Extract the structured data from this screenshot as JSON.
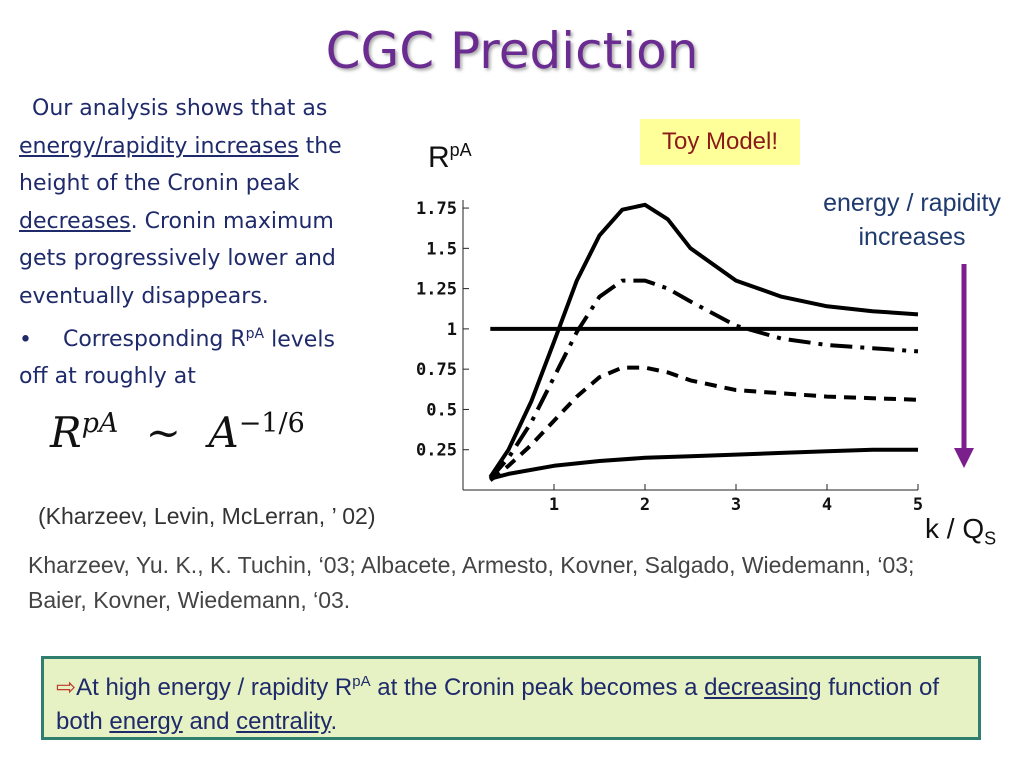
{
  "title": "CGC Prediction",
  "paragraph": {
    "part1": "Our analysis shows that as",
    "u1": "energy/rapidity increases",
    "part2": "the height of the Cronin peak",
    "u2": "decreases",
    "part3": ". Cronin maximum gets progressively lower and eventually disappears.",
    "bullet": "•",
    "bullet_pre": "Corresponding R",
    "bullet_sup": "pA",
    "bullet_post": "levels off at roughly at"
  },
  "formula": {
    "base": "R",
    "base_sup": "pA",
    "sim": "∼",
    "rhs": "A",
    "rhs_sup": "−1/6"
  },
  "cite1": "(Kharzeev, Levin, McLerran, ’ 02)",
  "cite2": "Kharzeev, Yu. K., K. Tuchin, ‘03; Albacete, Armesto, Kovner, Salgado, Wiedemann, ‘03; Baier, Kovner, Wiedemann, ‘03.",
  "toy_model": "Toy Model!",
  "annotation": {
    "line1": "energy / rapidity",
    "line2": "increases",
    "arrow_color": "#7b1f8c"
  },
  "conclusion": {
    "arrow": "⇨",
    "t1": "At high energy / rapidity R",
    "sup": "pA",
    "t2": "at the Cronin peak becomes a",
    "u1": "decreasing",
    "t3": "function of both",
    "u2": "energy",
    "t4": "and",
    "u3": "centrality",
    "t5": "."
  },
  "chart_data": {
    "type": "line",
    "title": "",
    "xlabel": "k / Q",
    "xlabel_sub": "S",
    "ylabel": "R",
    "ylabel_sup": "pA",
    "xlim": [
      0,
      5
    ],
    "ylim": [
      0,
      1.8
    ],
    "x_ticks": [
      "1",
      "2",
      "3",
      "4",
      "5"
    ],
    "y_ticks": [
      "0.25",
      "0.5",
      "0.75",
      "1",
      "1.25",
      "1.5",
      "1.75"
    ],
    "grid": false,
    "series": [
      {
        "style": "solid",
        "x": [
          0.3,
          0.5,
          0.75,
          1.0,
          1.25,
          1.5,
          1.75,
          2.0,
          2.25,
          2.5,
          3.0,
          3.5,
          4.0,
          4.5,
          5.0
        ],
        "y": [
          0.08,
          0.25,
          0.55,
          0.92,
          1.3,
          1.58,
          1.74,
          1.77,
          1.68,
          1.5,
          1.3,
          1.2,
          1.14,
          1.11,
          1.09
        ]
      },
      {
        "style": "dashdot",
        "x": [
          0.3,
          0.5,
          0.75,
          1.0,
          1.25,
          1.5,
          1.75,
          2.0,
          2.25,
          2.5,
          3.0,
          3.5,
          4.0,
          4.5,
          5.0
        ],
        "y": [
          0.07,
          0.2,
          0.42,
          0.7,
          0.98,
          1.2,
          1.3,
          1.3,
          1.25,
          1.17,
          1.02,
          0.94,
          0.9,
          0.88,
          0.86
        ]
      },
      {
        "style": "dashed",
        "x": [
          0.3,
          0.5,
          0.75,
          1.0,
          1.25,
          1.5,
          1.75,
          2.0,
          2.25,
          2.5,
          3.0,
          3.5,
          4.0,
          4.5,
          5.0
        ],
        "y": [
          0.06,
          0.15,
          0.28,
          0.43,
          0.58,
          0.7,
          0.76,
          0.76,
          0.73,
          0.68,
          0.62,
          0.6,
          0.58,
          0.57,
          0.56
        ]
      },
      {
        "style": "solid",
        "x": [
          0.3,
          0.5,
          1.0,
          1.5,
          2.0,
          2.5,
          3.0,
          3.5,
          4.0,
          4.5,
          5.0
        ],
        "y": [
          0.07,
          0.1,
          0.15,
          0.18,
          0.2,
          0.21,
          0.22,
          0.23,
          0.24,
          0.25,
          0.25
        ]
      },
      {
        "style": "solid",
        "x": [
          0.3,
          5.0
        ],
        "y": [
          1.0,
          1.0
        ]
      }
    ]
  }
}
